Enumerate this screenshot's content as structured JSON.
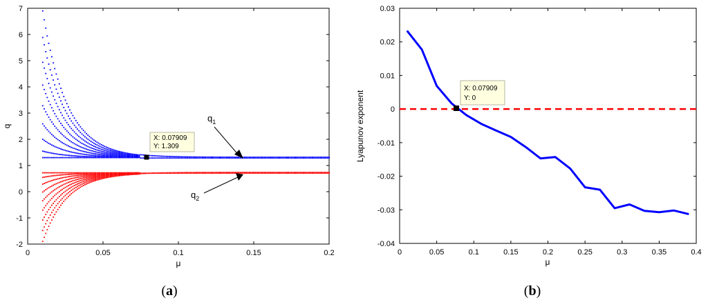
{
  "chart_data": [
    {
      "type": "scatter",
      "caption": "a",
      "xlabel": "μ",
      "ylabel": "q",
      "xlim": [
        0,
        0.2
      ],
      "ylim": [
        -2,
        7
      ],
      "xticks": [
        "0",
        "0.05",
        "0.1",
        "0.15",
        "0.2"
      ],
      "yticks": [
        "-2",
        "-1",
        "0",
        "1",
        "2",
        "3",
        "4",
        "5",
        "6",
        "7"
      ],
      "series": [
        {
          "name": "q1",
          "color": "#0000ff",
          "converges_to": 1.3,
          "mu_start": 0.01,
          "mu_end": 0.2,
          "max_value": 6.9,
          "min_value": 0.95
        },
        {
          "name": "q2",
          "color": "#ff0000",
          "converges_to": 0.72,
          "mu_start": 0.01,
          "mu_end": 0.2,
          "max_value": 1.3,
          "min_value": -1.9
        }
      ],
      "annotations": [
        {
          "label": "q",
          "subscript": "1",
          "arrow_to": [
            0.143,
            1.31
          ]
        },
        {
          "label": "q",
          "subscript": "2",
          "arrow_to": [
            0.143,
            0.72
          ]
        }
      ],
      "datatip": {
        "x": 0.07909,
        "y": 1.309,
        "line1": "X: 0.07909",
        "line2": "Y: 1.309"
      }
    },
    {
      "type": "line",
      "caption": "b",
      "xlabel": "μ",
      "ylabel": "Lyapunov exponent",
      "xlim": [
        0,
        0.4
      ],
      "ylim": [
        -0.04,
        0.03
      ],
      "xticks": [
        "0",
        "0.05",
        "0.1",
        "0.15",
        "0.2",
        "0.25",
        "0.3",
        "0.35",
        "0.4"
      ],
      "yticks": [
        "-0.04",
        "-0.03",
        "-0.02",
        "-0.01",
        "0",
        "0.01",
        "0.02",
        "0.03"
      ],
      "series": [
        {
          "color": "#0000ff",
          "x": [
            0.01,
            0.03,
            0.05,
            0.07,
            0.09,
            0.11,
            0.13,
            0.15,
            0.17,
            0.19,
            0.21,
            0.23,
            0.25,
            0.27,
            0.29,
            0.31,
            0.33,
            0.35,
            0.37,
            0.39
          ],
          "y": [
            0.0233,
            0.0177,
            0.0069,
            0.0017,
            -0.0018,
            -0.0044,
            -0.0064,
            -0.0083,
            -0.0113,
            -0.0147,
            -0.0143,
            -0.0177,
            -0.0233,
            -0.024,
            -0.0295,
            -0.0284,
            -0.0303,
            -0.0307,
            -0.0302,
            -0.0313
          ]
        }
      ],
      "reference_line": {
        "y": 0,
        "color": "#ff0000",
        "style": "dashed"
      },
      "datatip": {
        "x": 0.07909,
        "y": 0,
        "line1": "X: 0.07909",
        "line2": "Y: 0"
      }
    }
  ]
}
